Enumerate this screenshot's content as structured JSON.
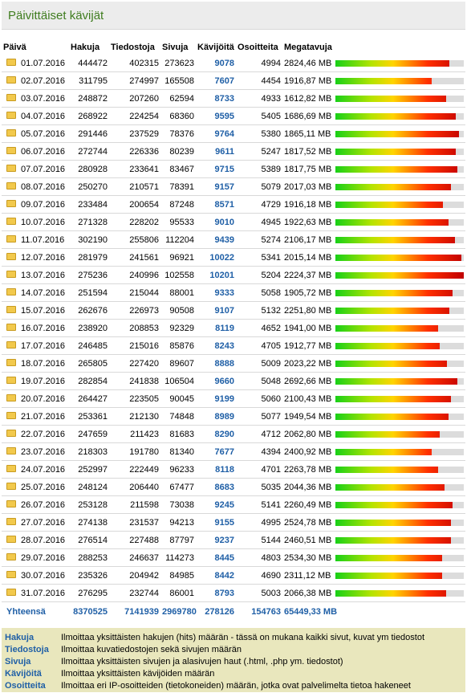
{
  "title": "Päivittäiset kävijät",
  "headers": [
    "Päivä",
    "Hakuja",
    "Tiedostoja",
    "Sivuja",
    "Kävijöitä",
    "Osoitteita",
    "Megatavuja"
  ],
  "rows": [
    {
      "date": "01.07.2016",
      "hakuja": "444472",
      "tiedostoja": "402315",
      "sivuja": "273623",
      "kavijoita": "9078",
      "osoitteita": "4994",
      "mb": "2824,46 MB",
      "bar": 0.89
    },
    {
      "date": "02.07.2016",
      "hakuja": "311795",
      "tiedostoja": "274997",
      "sivuja": "165508",
      "kavijoita": "7607",
      "osoitteita": "4454",
      "mb": "1916,87 MB",
      "bar": 0.75
    },
    {
      "date": "03.07.2016",
      "hakuja": "248872",
      "tiedostoja": "207260",
      "sivuja": "62594",
      "kavijoita": "8733",
      "osoitteita": "4933",
      "mb": "1612,82 MB",
      "bar": 0.86
    },
    {
      "date": "04.07.2016",
      "hakuja": "268922",
      "tiedostoja": "224254",
      "sivuja": "68360",
      "kavijoita": "9595",
      "osoitteita": "5405",
      "mb": "1686,69 MB",
      "bar": 0.94
    },
    {
      "date": "05.07.2016",
      "hakuja": "291446",
      "tiedostoja": "237529",
      "sivuja": "78376",
      "kavijoita": "9764",
      "osoitteita": "5380",
      "mb": "1865,11 MB",
      "bar": 0.96
    },
    {
      "date": "06.07.2016",
      "hakuja": "272744",
      "tiedostoja": "226336",
      "sivuja": "80239",
      "kavijoita": "9611",
      "osoitteita": "5247",
      "mb": "1817,52 MB",
      "bar": 0.94
    },
    {
      "date": "07.07.2016",
      "hakuja": "280928",
      "tiedostoja": "233641",
      "sivuja": "83467",
      "kavijoita": "9715",
      "osoitteita": "5389",
      "mb": "1817,75 MB",
      "bar": 0.95
    },
    {
      "date": "08.07.2016",
      "hakuja": "250270",
      "tiedostoja": "210571",
      "sivuja": "78391",
      "kavijoita": "9157",
      "osoitteita": "5079",
      "mb": "2017,03 MB",
      "bar": 0.9
    },
    {
      "date": "09.07.2016",
      "hakuja": "233484",
      "tiedostoja": "200654",
      "sivuja": "87248",
      "kavijoita": "8571",
      "osoitteita": "4729",
      "mb": "1916,18 MB",
      "bar": 0.84
    },
    {
      "date": "10.07.2016",
      "hakuja": "271328",
      "tiedostoja": "228202",
      "sivuja": "95533",
      "kavijoita": "9010",
      "osoitteita": "4945",
      "mb": "1922,63 MB",
      "bar": 0.88
    },
    {
      "date": "11.07.2016",
      "hakuja": "302190",
      "tiedostoja": "255806",
      "sivuja": "112204",
      "kavijoita": "9439",
      "osoitteita": "5274",
      "mb": "2106,17 MB",
      "bar": 0.93
    },
    {
      "date": "12.07.2016",
      "hakuja": "281979",
      "tiedostoja": "241561",
      "sivuja": "96921",
      "kavijoita": "10022",
      "osoitteita": "5341",
      "mb": "2015,14 MB",
      "bar": 0.98
    },
    {
      "date": "13.07.2016",
      "hakuja": "275236",
      "tiedostoja": "240996",
      "sivuja": "102558",
      "kavijoita": "10201",
      "osoitteita": "5204",
      "mb": "2224,37 MB",
      "bar": 1.0
    },
    {
      "date": "14.07.2016",
      "hakuja": "251594",
      "tiedostoja": "215044",
      "sivuja": "88001",
      "kavijoita": "9333",
      "osoitteita": "5058",
      "mb": "1905,72 MB",
      "bar": 0.91
    },
    {
      "date": "15.07.2016",
      "hakuja": "262676",
      "tiedostoja": "226973",
      "sivuja": "90508",
      "kavijoita": "9107",
      "osoitteita": "5132",
      "mb": "2251,80 MB",
      "bar": 0.89
    },
    {
      "date": "16.07.2016",
      "hakuja": "238920",
      "tiedostoja": "208853",
      "sivuja": "92329",
      "kavijoita": "8119",
      "osoitteita": "4652",
      "mb": "1941,00 MB",
      "bar": 0.8
    },
    {
      "date": "17.07.2016",
      "hakuja": "246485",
      "tiedostoja": "215016",
      "sivuja": "85876",
      "kavijoita": "8243",
      "osoitteita": "4705",
      "mb": "1912,77 MB",
      "bar": 0.81
    },
    {
      "date": "18.07.2016",
      "hakuja": "265805",
      "tiedostoja": "227420",
      "sivuja": "89607",
      "kavijoita": "8888",
      "osoitteita": "5009",
      "mb": "2023,22 MB",
      "bar": 0.87
    },
    {
      "date": "19.07.2016",
      "hakuja": "282854",
      "tiedostoja": "241838",
      "sivuja": "106504",
      "kavijoita": "9660",
      "osoitteita": "5048",
      "mb": "2692,66 MB",
      "bar": 0.95
    },
    {
      "date": "20.07.2016",
      "hakuja": "264427",
      "tiedostoja": "223505",
      "sivuja": "90045",
      "kavijoita": "9199",
      "osoitteita": "5060",
      "mb": "2100,43 MB",
      "bar": 0.9
    },
    {
      "date": "21.07.2016",
      "hakuja": "253361",
      "tiedostoja": "212130",
      "sivuja": "74848",
      "kavijoita": "8989",
      "osoitteita": "5077",
      "mb": "1949,54 MB",
      "bar": 0.88
    },
    {
      "date": "22.07.2016",
      "hakuja": "247659",
      "tiedostoja": "211423",
      "sivuja": "81683",
      "kavijoita": "8290",
      "osoitteita": "4712",
      "mb": "2062,80 MB",
      "bar": 0.81
    },
    {
      "date": "23.07.2016",
      "hakuja": "218303",
      "tiedostoja": "191780",
      "sivuja": "81340",
      "kavijoita": "7677",
      "osoitteita": "4394",
      "mb": "2400,92 MB",
      "bar": 0.75
    },
    {
      "date": "24.07.2016",
      "hakuja": "252997",
      "tiedostoja": "222449",
      "sivuja": "96233",
      "kavijoita": "8118",
      "osoitteita": "4701",
      "mb": "2263,78 MB",
      "bar": 0.8
    },
    {
      "date": "25.07.2016",
      "hakuja": "248124",
      "tiedostoja": "206440",
      "sivuja": "67477",
      "kavijoita": "8683",
      "osoitteita": "5035",
      "mb": "2044,36 MB",
      "bar": 0.85
    },
    {
      "date": "26.07.2016",
      "hakuja": "253128",
      "tiedostoja": "211598",
      "sivuja": "73038",
      "kavijoita": "9245",
      "osoitteita": "5141",
      "mb": "2260,49 MB",
      "bar": 0.91
    },
    {
      "date": "27.07.2016",
      "hakuja": "274138",
      "tiedostoja": "231537",
      "sivuja": "94213",
      "kavijoita": "9155",
      "osoitteita": "4995",
      "mb": "2524,78 MB",
      "bar": 0.9
    },
    {
      "date": "28.07.2016",
      "hakuja": "276514",
      "tiedostoja": "227488",
      "sivuja": "87797",
      "kavijoita": "9237",
      "osoitteita": "5144",
      "mb": "2460,51 MB",
      "bar": 0.9
    },
    {
      "date": "29.07.2016",
      "hakuja": "288253",
      "tiedostoja": "246637",
      "sivuja": "114273",
      "kavijoita": "8445",
      "osoitteita": "4803",
      "mb": "2534,30 MB",
      "bar": 0.83
    },
    {
      "date": "30.07.2016",
      "hakuja": "235326",
      "tiedostoja": "204942",
      "sivuja": "84985",
      "kavijoita": "8442",
      "osoitteita": "4690",
      "mb": "2311,12 MB",
      "bar": 0.83
    },
    {
      "date": "31.07.2016",
      "hakuja": "276295",
      "tiedostoja": "232744",
      "sivuja": "86001",
      "kavijoita": "8793",
      "osoitteita": "5003",
      "mb": "2066,38 MB",
      "bar": 0.86
    }
  ],
  "total": {
    "label": "Yhteensä",
    "hakuja": "8370525",
    "tiedostoja": "7141939",
    "sivuja": "2969780",
    "kavijoita": "278126",
    "osoitteita": "154763",
    "mb": "65449,33 MB"
  },
  "legend": [
    {
      "key": "Hakuja",
      "desc": "Ilmoittaa yksittäisten hakujen (hits) määrän - tässä on mukana kaikki sivut, kuvat ym tiedostot"
    },
    {
      "key": "Tiedostoja",
      "desc": "Ilmoittaa kuvatiedostojen sekä sivujen määrän"
    },
    {
      "key": "Sivuja",
      "desc": "Ilmoittaa yksittäisten sivujen ja alasivujen haut (.html, .php ym. tiedostot)"
    },
    {
      "key": "Kävijöitä",
      "desc": "Ilmoittaa yksittäisten kävijöiden määrän"
    },
    {
      "key": "Osoitteita",
      "desc": "Ilmoittaa eri IP-osoitteiden (tietokoneiden) määrän, jotka ovat palvelimelta tietoa hakeneet"
    }
  ]
}
